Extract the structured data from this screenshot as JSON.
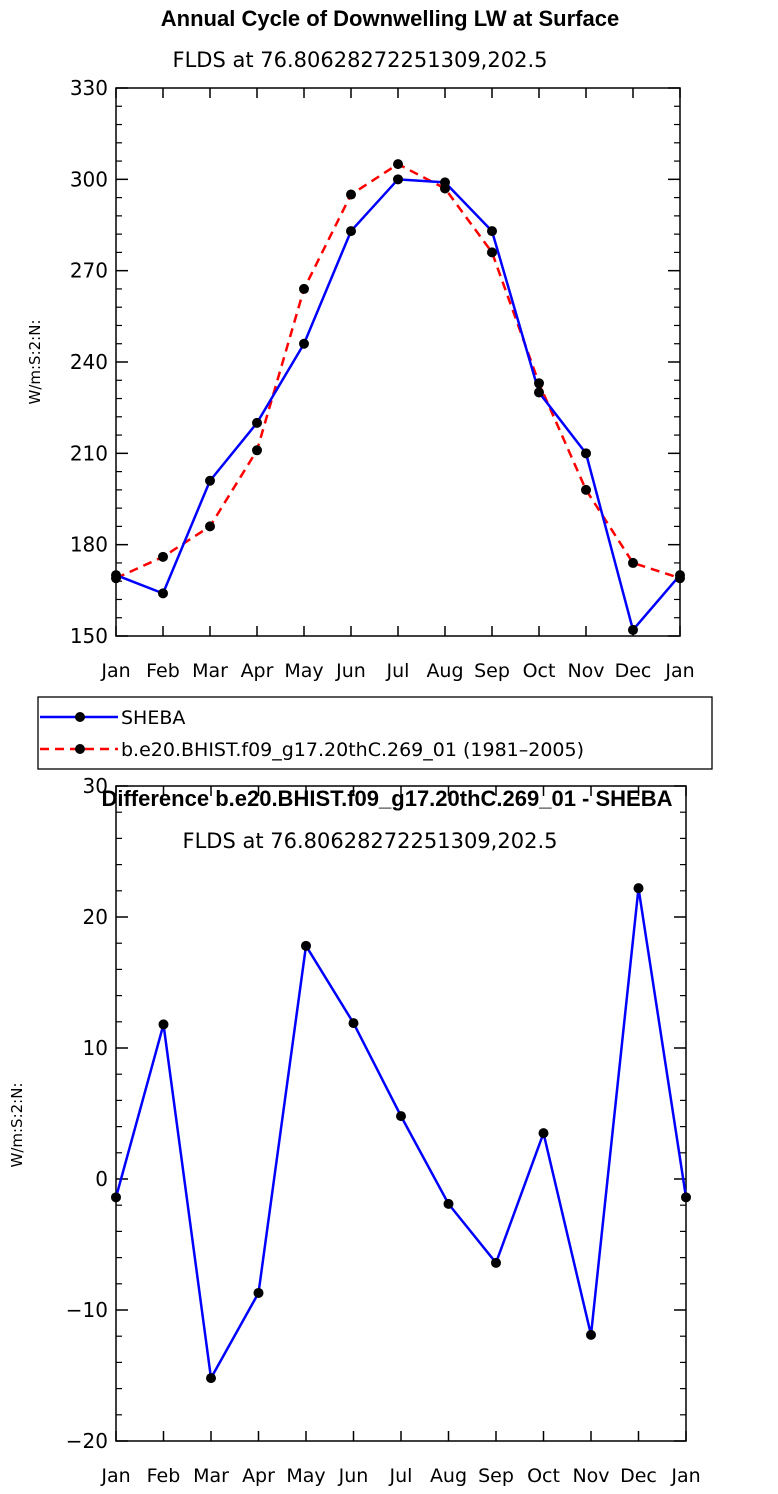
{
  "chart_data": [
    {
      "type": "line",
      "title": "Annual Cycle of Downwelling LW at Surface",
      "subtitle": "FLDS at 76.80628272251309,202.5",
      "xlabel": "",
      "ylabel": "W/m:S:2:N:",
      "categories": [
        "Jan",
        "Feb",
        "Mar",
        "Apr",
        "May",
        "Jun",
        "Jul",
        "Aug",
        "Sep",
        "Oct",
        "Nov",
        "Dec",
        "Jan"
      ],
      "ylim": [
        150,
        330
      ],
      "yticks": [
        150,
        180,
        210,
        240,
        270,
        300,
        330
      ],
      "series": [
        {
          "name": "SHEBA",
          "color": "#0000ff",
          "dash": "solid",
          "values": [
            170,
            164,
            201,
            220,
            246,
            283,
            300,
            299,
            283,
            230,
            210,
            152,
            170
          ]
        },
        {
          "name": "b.e20.BHIST.f09_g17.20thC.269_01 (1981–2005)",
          "color": "#ff0000",
          "dash": "dashed",
          "values": [
            169,
            176,
            186,
            211,
            264,
            295,
            305,
            297,
            276,
            233,
            198,
            174,
            169
          ]
        }
      ],
      "legend": "below"
    },
    {
      "type": "line",
      "title": "Difference b.e20.BHIST.f09_g17.20thC.269_01 - SHEBA",
      "subtitle": "FLDS at 76.80628272251309,202.5",
      "xlabel": "",
      "ylabel": "W/m:S:2:N:",
      "categories": [
        "Jan",
        "Feb",
        "Mar",
        "Apr",
        "May",
        "Jun",
        "Jul",
        "Aug",
        "Sep",
        "Oct",
        "Nov",
        "Dec",
        "Jan"
      ],
      "ylim": [
        -20,
        30
      ],
      "yticks": [
        -20,
        -10,
        0,
        10,
        20,
        30
      ],
      "series": [
        {
          "name": "Difference",
          "color": "#0000ff",
          "dash": "solid",
          "values": [
            -1.4,
            11.8,
            -15.2,
            -8.7,
            17.8,
            11.9,
            4.8,
            -1.9,
            -6.4,
            3.5,
            -11.9,
            22.2,
            -1.4
          ]
        }
      ]
    }
  ]
}
